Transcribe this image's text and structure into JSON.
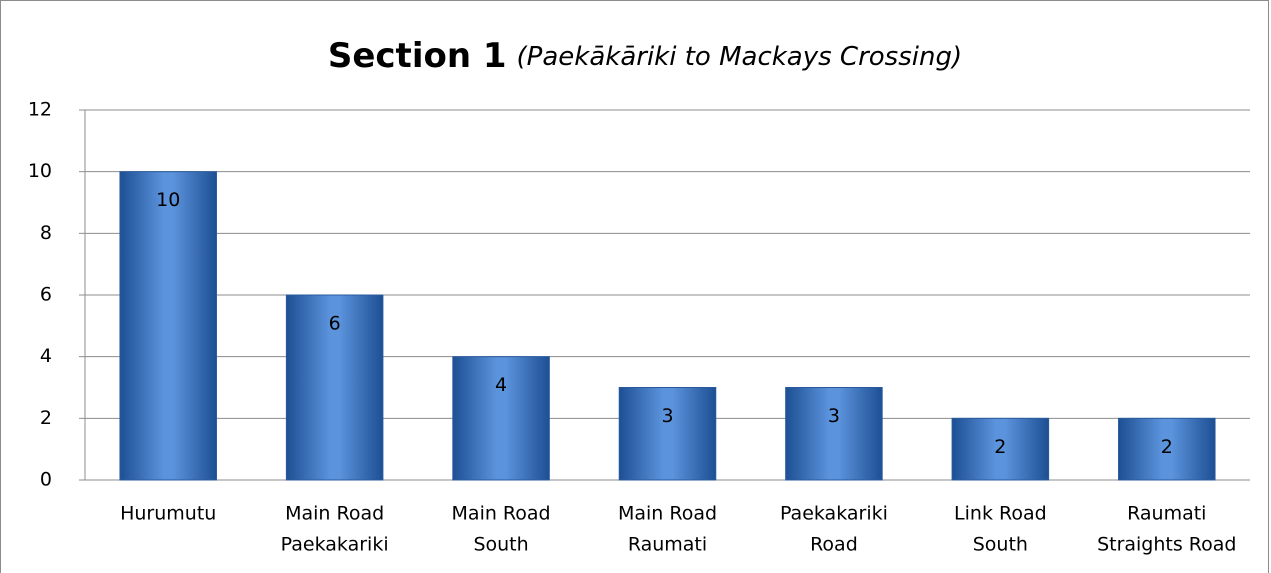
{
  "chart_data": {
    "type": "bar",
    "title": "Section 1",
    "subtitle": "(Paekākāriki to Mackays Crossing)",
    "categories": [
      [
        "Hurumutu"
      ],
      [
        "Main Road",
        "Paekakariki"
      ],
      [
        "Main Road",
        "South"
      ],
      [
        "Main Road",
        "Raumati"
      ],
      [
        "Paekakariki",
        "Road"
      ],
      [
        "Link Road",
        "South"
      ],
      [
        "Raumati",
        "Straights Road"
      ]
    ],
    "values": [
      10,
      6,
      4,
      3,
      3,
      2,
      2
    ],
    "color": "#3a75c4",
    "ylim": [
      0,
      12
    ],
    "yticks": [
      0,
      2,
      4,
      6,
      8,
      10,
      12
    ],
    "grid": true
  }
}
